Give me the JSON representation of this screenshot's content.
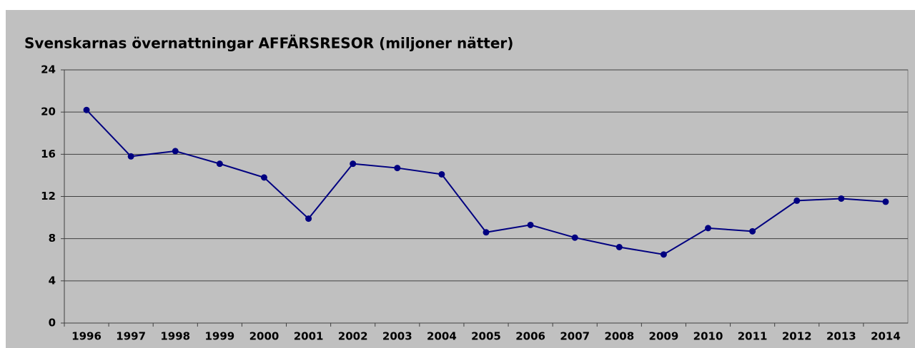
{
  "chart_data": {
    "type": "line",
    "title": "Svenskarnas övernattningar AFFÄRSRESOR (miljoner nätter)",
    "categories": [
      "1996",
      "1997",
      "1998",
      "1999",
      "2000",
      "2001",
      "2002",
      "2003",
      "2004",
      "2005",
      "2006",
      "2007",
      "2008",
      "2009",
      "2010",
      "2011",
      "2012",
      "2013",
      "2014"
    ],
    "series": [
      {
        "name": "Övernattningar",
        "color": "#000080",
        "values": [
          20.2,
          15.8,
          16.3,
          15.1,
          13.8,
          9.9,
          15.1,
          14.7,
          14.1,
          8.6,
          9.3,
          8.1,
          7.2,
          6.5,
          9.0,
          8.7,
          11.6,
          11.8,
          11.5
        ]
      }
    ],
    "ylim": [
      0,
      24
    ],
    "yticks": [
      0,
      4,
      8,
      12,
      16,
      20,
      24
    ],
    "grid": true
  }
}
